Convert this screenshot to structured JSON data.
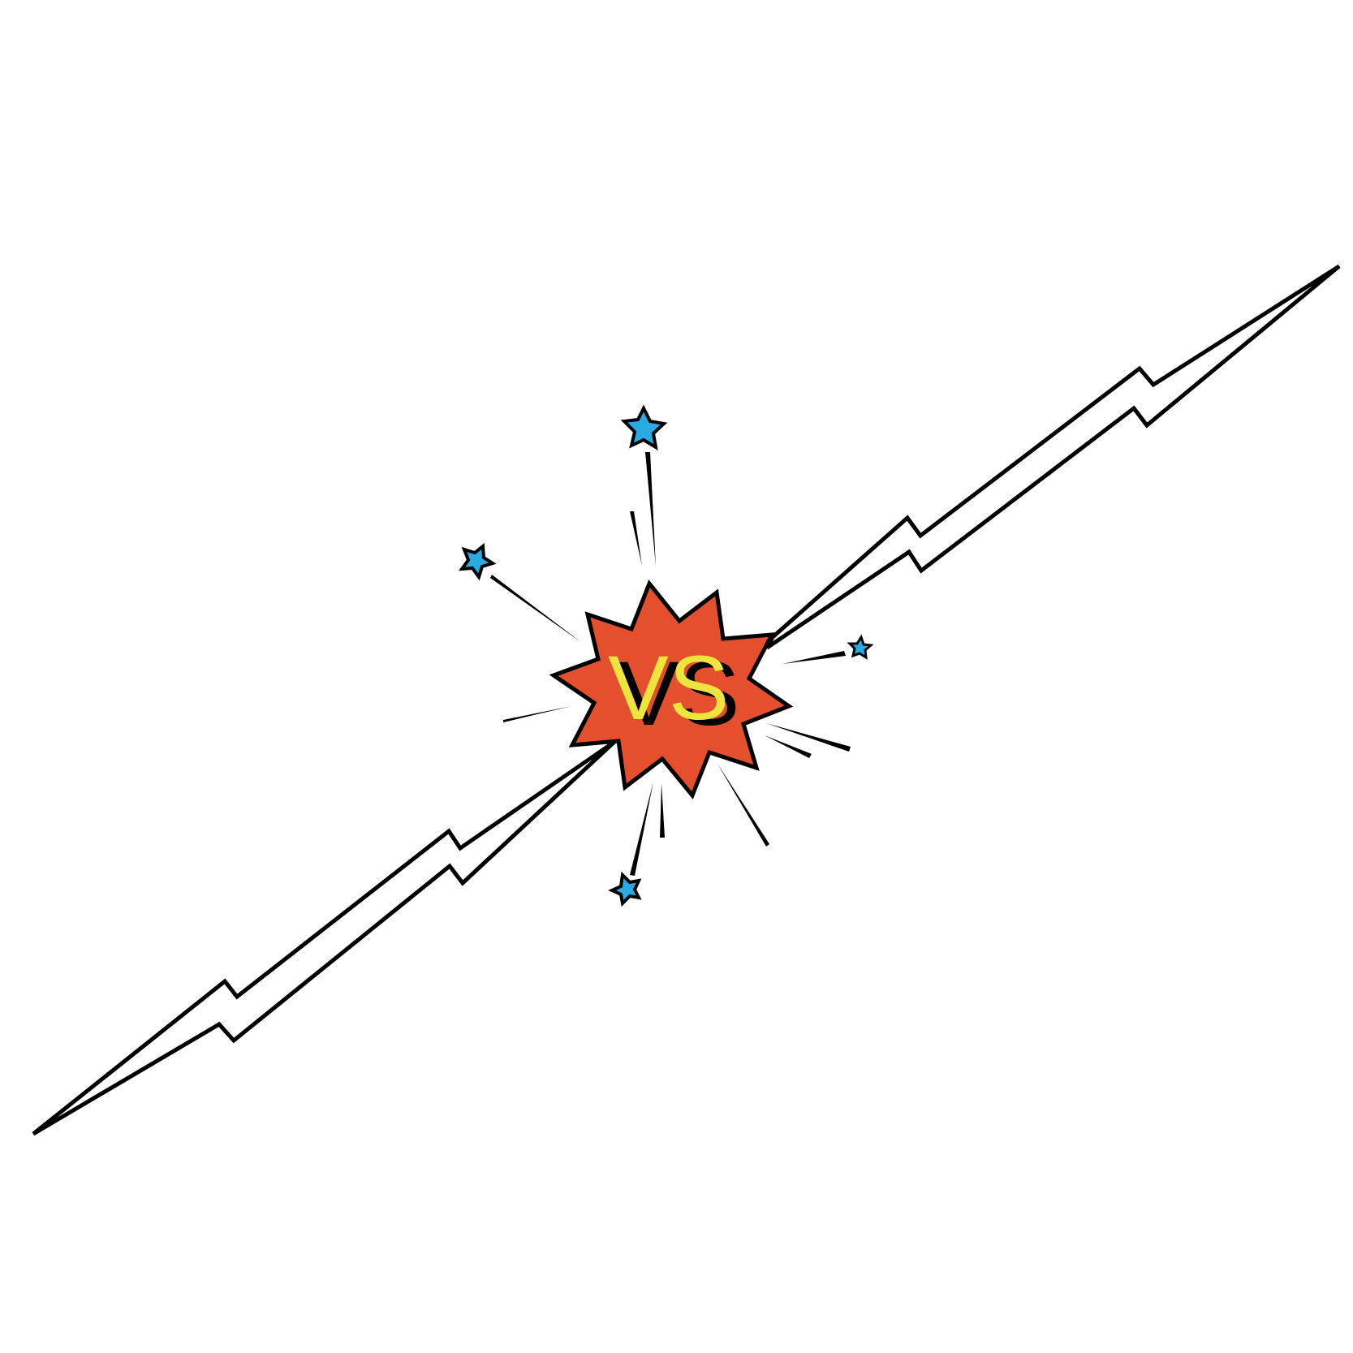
{
  "badge": {
    "label": "VS"
  },
  "colors": {
    "background": "#ffffff",
    "outline": "#000000",
    "burst_fill": "#e4502e",
    "vs_text": "#ede43e",
    "vs_shadow": "#000000",
    "star_fill": "#2aaae2"
  },
  "icons": [
    "lightning-bolt-icon",
    "burst-icon",
    "star-icon"
  ]
}
